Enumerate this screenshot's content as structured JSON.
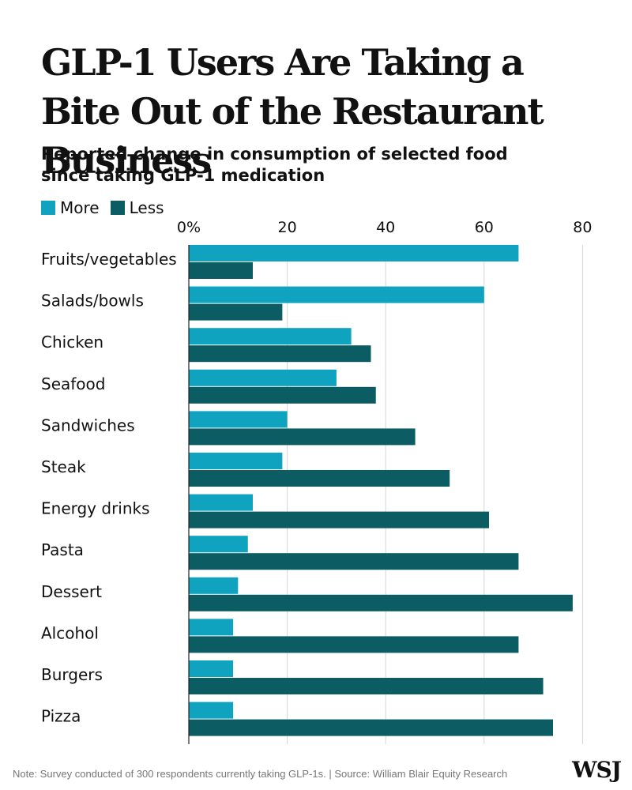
{
  "title": "GLP-1 Users Are Taking a Bite Out of the Restaurant Business",
  "subtitle": "Reported change in consumption of selected food  since taking GLP-1 medication",
  "note": "Note: Survey conducted of 300 respondents currently taking GLP-1s. | Source: William Blair Equity Research",
  "logo": "WSJ",
  "colors": {
    "more": "#0fa3bf",
    "less": "#0b5c63",
    "grid": "#d6d6d6",
    "axis": "#222222"
  },
  "chart_data": {
    "type": "bar",
    "orientation": "horizontal",
    "categories": [
      "Fruits/vegetables",
      "Salads/bowls",
      "Chicken",
      "Seafood",
      "Sandwiches",
      "Steak",
      "Energy drinks",
      "Pasta",
      "Dessert",
      "Alcohol",
      "Burgers",
      "Pizza"
    ],
    "series": [
      {
        "name": "More",
        "values": [
          67,
          60,
          33,
          30,
          20,
          19,
          13,
          12,
          10,
          9,
          9,
          9
        ]
      },
      {
        "name": "Less",
        "values": [
          13,
          19,
          37,
          38,
          46,
          53,
          61,
          67,
          78,
          67,
          72,
          74
        ]
      }
    ],
    "xlim": [
      0,
      80
    ],
    "ticks": [
      "0%",
      "20",
      "40",
      "60",
      "80"
    ],
    "tick_values": [
      0,
      20,
      40,
      60,
      80
    ],
    "grid": true,
    "legend_position": "top-left"
  }
}
